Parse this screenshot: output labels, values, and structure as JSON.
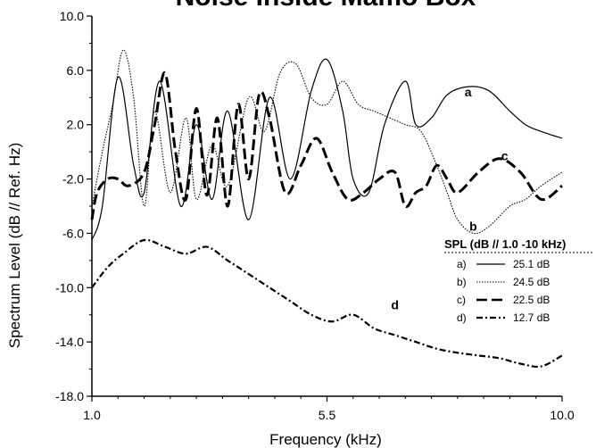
{
  "chart_data": {
    "type": "line",
    "title": "Noise Inside Mamo Box",
    "xlabel": "Frequency (kHz)",
    "ylabel": "Spectrum Level (dB // Ref. Hz)",
    "xlim": [
      1.0,
      10.0
    ],
    "ylim": [
      -18.0,
      10.0
    ],
    "x_ticks": [
      "1.0",
      "5.5",
      "10.0"
    ],
    "x_tick_values": [
      1.0,
      5.5,
      10.0
    ],
    "y_ticks": [
      "10.0",
      "6.0",
      "2.0",
      "-2.0",
      "-6.0",
      "-10.0",
      "-14.0",
      "-18.0"
    ],
    "y_tick_values": [
      10,
      6,
      2,
      -2,
      -6,
      -10,
      -14,
      -18
    ],
    "grid": false,
    "legend": {
      "title": "SPL (dB // 1.0 -10 kHz)",
      "placement": "right",
      "entries": [
        {
          "key": "a)",
          "label": "25.1 dB"
        },
        {
          "key": "b)",
          "label": "24.5 dB"
        },
        {
          "key": "c)",
          "label": "22.5 dB"
        },
        {
          "key": "d)",
          "label": "12.7 dB"
        }
      ]
    },
    "series": [
      {
        "key": "a",
        "color": "#000000",
        "x": [
          1.0,
          1.2,
          1.5,
          1.8,
          2.0,
          2.3,
          2.7,
          3.0,
          3.3,
          3.6,
          4.0,
          4.4,
          4.8,
          5.2,
          5.5,
          5.8,
          6.0,
          6.3,
          6.6,
          7.0,
          7.2,
          7.5,
          7.8,
          8.2,
          8.6,
          9.0,
          9.3,
          9.6,
          10.0
        ],
        "y": [
          -6.5,
          -4.0,
          5.5,
          -1.0,
          -3.0,
          5.2,
          -4.0,
          2.0,
          -3.5,
          3.0,
          -5.0,
          4.0,
          -2.0,
          4.5,
          6.8,
          3.0,
          -2.0,
          -3.0,
          2.0,
          5.2,
          2.0,
          2.5,
          4.2,
          4.8,
          4.5,
          3.0,
          2.0,
          1.5,
          1.0
        ]
      },
      {
        "key": "b",
        "color": "#000000",
        "x": [
          1.0,
          1.2,
          1.4,
          1.6,
          1.8,
          2.0,
          2.2,
          2.5,
          2.8,
          3.0,
          3.3,
          3.6,
          4.0,
          4.3,
          4.6,
          4.9,
          5.2,
          5.5,
          5.8,
          6.1,
          6.4,
          6.7,
          7.0,
          7.3,
          7.6,
          7.8,
          8.0,
          8.3,
          8.6,
          9.0,
          9.3,
          9.6,
          10.0
        ],
        "y": [
          -4.0,
          0.0,
          3.5,
          7.5,
          4.0,
          -4.0,
          3.0,
          -3.0,
          2.5,
          -3.5,
          0.5,
          -2.5,
          4.0,
          1.5,
          5.8,
          6.5,
          4.0,
          3.5,
          5.2,
          3.5,
          3.0,
          2.5,
          2.0,
          1.5,
          -1.0,
          -3.0,
          -5.0,
          -6.0,
          -5.5,
          -4.0,
          -3.5,
          -2.5,
          -1.5
        ]
      },
      {
        "key": "c",
        "color": "#000000",
        "x": [
          1.0,
          1.1,
          1.3,
          1.5,
          1.7,
          2.0,
          2.2,
          2.4,
          2.6,
          2.8,
          3.0,
          3.2,
          3.4,
          3.6,
          3.8,
          4.0,
          4.2,
          4.4,
          4.7,
          5.0,
          5.3,
          5.6,
          5.9,
          6.2,
          6.5,
          6.8,
          7.0,
          7.2,
          7.4,
          7.6,
          7.8,
          8.0,
          8.4,
          8.8,
          9.2,
          9.6,
          10.0
        ],
        "y": [
          -5.0,
          -3.0,
          -2.0,
          -2.0,
          -2.5,
          -1.5,
          2.0,
          5.8,
          0.0,
          -3.5,
          3.2,
          -3.2,
          2.5,
          -4.0,
          3.5,
          -2.0,
          4.2,
          2.5,
          -3.0,
          -1.0,
          1.0,
          -1.5,
          -3.5,
          -3.0,
          -2.0,
          -1.5,
          -4.0,
          -3.0,
          -2.5,
          -1.0,
          -2.0,
          -3.0,
          -1.5,
          -0.5,
          -1.5,
          -3.5,
          -2.5
        ]
      },
      {
        "key": "d",
        "color": "#000000",
        "x": [
          1.0,
          1.3,
          1.6,
          2.0,
          2.4,
          2.8,
          3.2,
          3.6,
          4.0,
          4.4,
          4.8,
          5.2,
          5.6,
          6.0,
          6.4,
          6.8,
          7.2,
          7.6,
          8.0,
          8.4,
          8.8,
          9.2,
          9.6,
          10.0
        ],
        "y": [
          -10.0,
          -8.5,
          -7.5,
          -6.5,
          -7.0,
          -7.5,
          -7.0,
          -8.0,
          -9.0,
          -10.0,
          -11.0,
          -12.0,
          -12.5,
          -12.0,
          -13.0,
          -13.5,
          -14.0,
          -14.5,
          -14.8,
          -15.0,
          -15.2,
          -15.6,
          -15.8,
          -15.0
        ]
      }
    ],
    "annotations": [
      {
        "text": "a",
        "x": 8.2,
        "y": 4.1
      },
      {
        "text": "b",
        "x": 8.3,
        "y": -5.8
      },
      {
        "text": "c",
        "x": 8.9,
        "y": -0.6
      },
      {
        "text": "d",
        "x": 6.8,
        "y": -11.6
      }
    ]
  }
}
